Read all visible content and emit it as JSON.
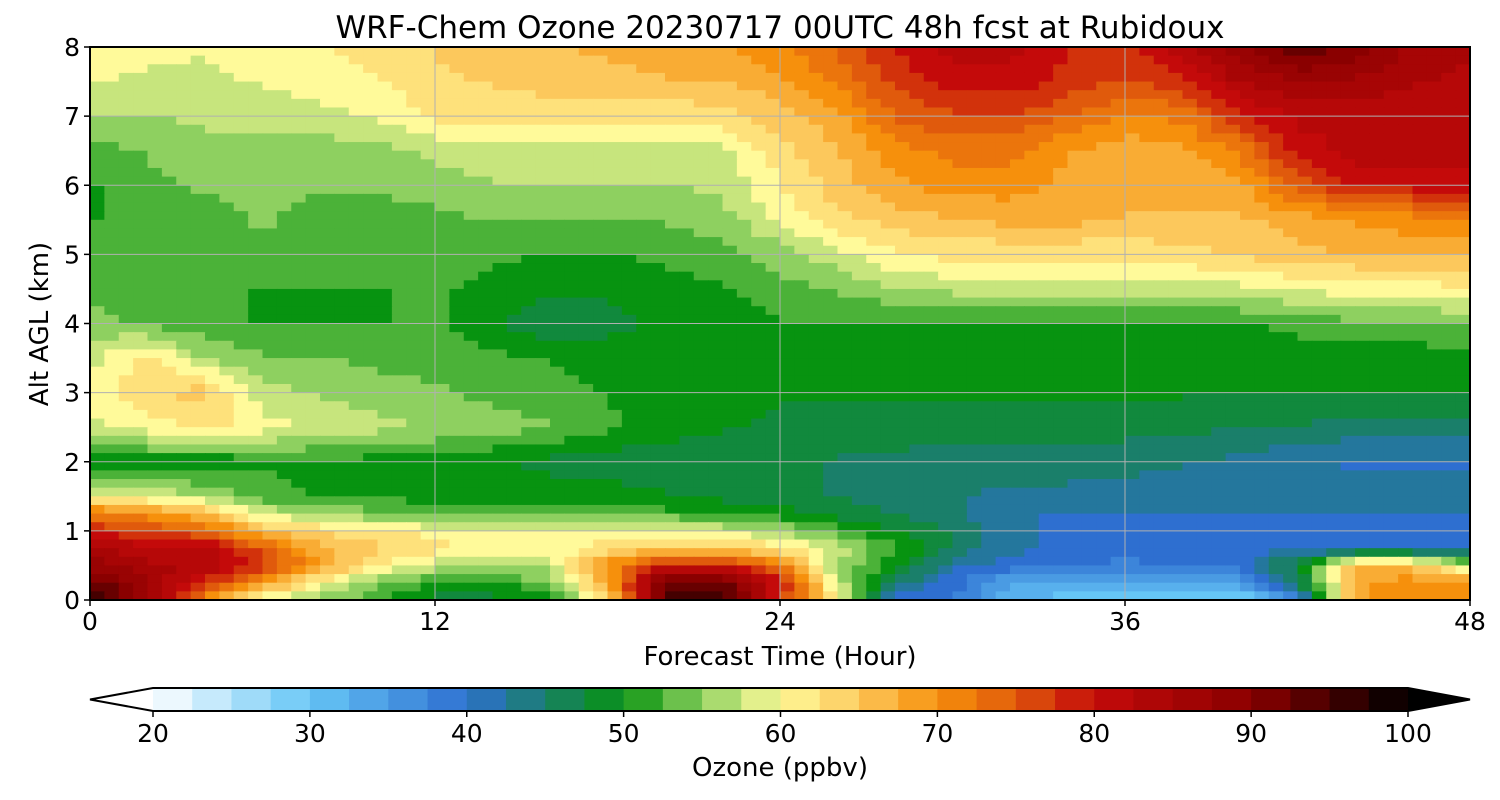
{
  "chart_data": {
    "type": "heatmap",
    "subtype": "filled-contour",
    "title": "WRF-Chem Ozone  20230717 00UTC 48h fcst at Rubidoux",
    "xlabel": "Forecast Time (Hour)",
    "ylabel": "Alt AGL (km)",
    "xlim": [
      0,
      48
    ],
    "ylim": [
      0,
      8
    ],
    "x_ticks": [
      0,
      12,
      24,
      36,
      48
    ],
    "y_ticks": [
      0,
      1,
      2,
      3,
      4,
      5,
      6,
      7,
      8
    ],
    "grid": true,
    "colorbar": {
      "label": "Ozone  (ppbv)",
      "orientation": "horizontal",
      "placement": "bottom",
      "min": 20,
      "max": 100,
      "ticks": [
        20,
        30,
        40,
        50,
        60,
        70,
        80,
        90,
        100
      ],
      "extend": "both",
      "colors": [
        {
          "v": 20,
          "c": "#ffffff"
        },
        {
          "v": 30,
          "c": "#66c6f6"
        },
        {
          "v": 40,
          "c": "#2e6fd0"
        },
        {
          "v": 45,
          "c": "#1a7f6a"
        },
        {
          "v": 50,
          "c": "#079310"
        },
        {
          "v": 55,
          "c": "#8ed060"
        },
        {
          "v": 60,
          "c": "#fffa9a"
        },
        {
          "v": 65,
          "c": "#fcc85c"
        },
        {
          "v": 70,
          "c": "#f6900c"
        },
        {
          "v": 75,
          "c": "#e05a0c"
        },
        {
          "v": 80,
          "c": "#c40a0a"
        },
        {
          "v": 90,
          "c": "#8a0000"
        },
        {
          "v": 100,
          "c": "#000000"
        }
      ],
      "over_color": "#000000",
      "under_color": "#ffffff"
    },
    "hours": [
      0,
      2,
      4,
      6,
      8,
      10,
      12,
      14,
      16,
      18,
      20,
      22,
      24,
      26,
      28,
      30,
      32,
      34,
      36,
      38,
      40,
      42,
      44,
      46,
      48
    ],
    "altitudes_km": [
      0,
      0.25,
      0.5,
      0.75,
      1,
      1.25,
      1.5,
      2,
      2.5,
      3,
      3.5,
      4,
      4.5,
      5,
      5.5,
      6,
      6.5,
      7,
      7.5,
      8
    ],
    "values": [
      [
        98,
        88,
        70,
        58,
        55,
        52,
        48,
        48,
        50,
        62,
        95,
        96,
        78,
        60,
        40,
        38,
        32,
        30,
        29,
        30,
        28,
        38,
        68,
        70,
        70
      ],
      [
        93,
        86,
        78,
        70,
        60,
        55,
        50,
        50,
        55,
        68,
        92,
        92,
        80,
        58,
        45,
        40,
        34,
        34,
        34,
        35,
        35,
        45,
        68,
        70,
        70
      ],
      [
        88,
        84,
        84,
        78,
        68,
        62,
        58,
        55,
        57,
        70,
        80,
        80,
        72,
        55,
        50,
        42,
        40,
        40,
        38,
        39,
        40,
        48,
        66,
        66,
        55
      ],
      [
        84,
        82,
        82,
        75,
        67,
        64,
        62,
        60,
        60,
        62,
        65,
        64,
        62,
        58,
        52,
        46,
        42,
        40,
        40,
        40,
        40,
        40,
        40,
        40,
        40
      ],
      [
        78,
        76,
        74,
        66,
        63,
        62,
        60,
        60,
        60,
        60,
        60,
        58,
        56,
        52,
        49,
        46,
        42,
        40,
        40,
        40,
        40,
        40,
        40,
        40,
        40
      ],
      [
        72,
        70,
        66,
        58,
        56,
        54,
        53,
        53,
        52,
        52,
        52,
        51,
        50,
        48,
        46,
        44,
        42,
        41,
        41,
        41,
        41,
        41,
        41,
        41,
        41
      ],
      [
        60,
        58,
        56,
        52,
        51,
        51,
        50,
        50,
        50,
        50,
        49,
        48,
        47,
        46,
        45,
        44,
        43,
        43,
        42,
        42,
        42,
        42,
        42,
        42,
        42
      ],
      [
        50,
        50,
        49,
        51,
        51,
        50,
        50,
        49,
        48,
        47,
        47,
        47,
        47,
        46,
        46,
        45,
        45,
        45,
        45,
        44,
        43,
        42,
        41,
        41,
        41
      ],
      [
        58,
        60,
        62,
        60,
        58,
        57,
        56,
        55,
        54,
        52,
        50,
        49,
        48,
        48,
        47,
        47,
        47,
        47,
        47,
        47,
        46,
        46,
        45,
        45,
        45
      ],
      [
        60,
        63,
        65,
        57,
        56,
        55,
        54,
        53,
        52,
        51,
        50,
        50,
        49,
        49,
        49,
        49,
        49,
        49,
        49,
        49,
        49,
        49,
        49,
        49,
        49
      ],
      [
        58,
        62,
        56,
        54,
        54,
        53,
        53,
        52,
        51,
        50,
        50,
        50,
        50,
        50,
        50,
        50,
        50,
        50,
        50,
        50,
        50,
        50,
        50,
        50,
        50
      ],
      [
        55,
        53,
        52,
        51,
        51,
        51,
        52,
        49,
        47,
        48,
        49,
        50,
        51,
        51,
        51,
        51,
        51,
        51,
        51,
        51,
        51,
        52,
        53,
        53,
        54
      ],
      [
        53,
        52,
        52,
        51,
        51,
        51,
        52,
        50,
        49,
        49,
        50,
        51,
        53,
        54,
        56,
        57,
        57,
        57,
        58,
        58,
        58,
        59,
        60,
        60,
        61
      ],
      [
        52,
        53,
        53,
        53,
        53,
        53,
        53,
        52,
        51,
        51,
        52,
        53,
        55,
        58,
        61,
        62,
        62,
        62,
        62,
        63,
        64,
        66,
        66,
        67,
        67
      ],
      [
        51,
        52,
        53,
        54,
        53,
        53,
        53,
        54,
        54,
        54,
        54,
        55,
        59,
        63,
        65,
        66,
        67,
        67,
        66,
        66,
        66,
        67,
        69,
        70,
        71
      ],
      [
        51,
        53,
        54,
        54,
        54,
        54,
        55,
        56,
        56,
        56,
        56,
        57,
        61,
        65,
        68,
        70,
        70,
        68,
        67,
        67,
        68,
        75,
        80,
        80,
        80
      ],
      [
        53,
        54,
        55,
        55,
        55,
        55,
        57,
        58,
        58,
        58,
        58,
        58,
        63,
        66,
        70,
        72,
        72,
        69,
        67,
        68,
        72,
        80,
        82,
        82,
        82
      ],
      [
        56,
        56,
        57,
        57,
        58,
        59,
        62,
        62,
        62,
        62,
        62,
        63,
        65,
        68,
        74,
        76,
        76,
        74,
        71,
        72,
        78,
        82,
        82,
        82,
        82
      ],
      [
        59,
        58,
        58,
        59,
        60,
        61,
        63,
        64,
        65,
        65,
        66,
        66,
        68,
        72,
        77,
        80,
        80,
        78,
        76,
        78,
        84,
        86,
        86,
        84,
        83
      ],
      [
        61,
        60,
        59,
        60,
        61,
        62,
        64,
        65,
        66,
        67,
        68,
        68,
        71,
        74,
        79,
        82,
        82,
        79,
        78,
        83,
        88,
        94,
        90,
        86,
        84
      ]
    ]
  }
}
